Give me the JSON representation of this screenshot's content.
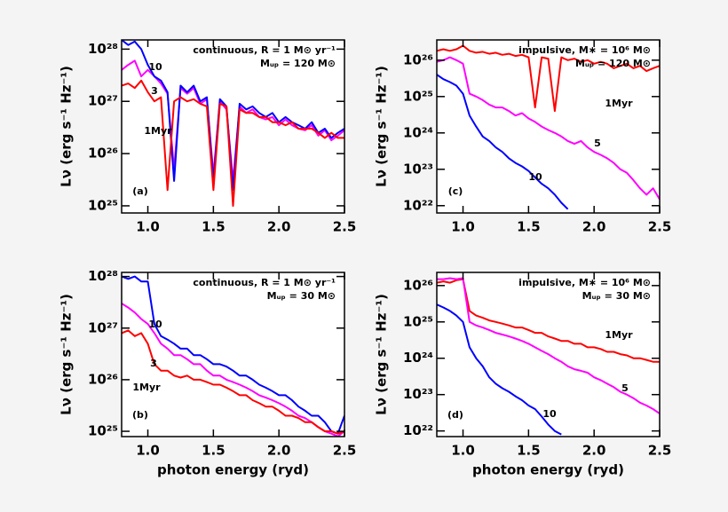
{
  "chart_data": [
    {
      "type": "line",
      "panel_label": "(a)",
      "text": [
        "continuous,  R = 1 M⊙ yr⁻¹",
        "Mᵤₚ = 120 M⊙"
      ],
      "ylabel": "Lν  (erg s⁻¹ Hz⁻¹)",
      "log_y": true,
      "xlim": [
        0.8,
        2.5
      ],
      "ylim": [
        7.3e+24,
        1.5e+28
      ],
      "xticks": [
        {
          "value": 1,
          "label": "1.0"
        },
        1.5,
        {
          "value": 2,
          "label": "2.0"
        },
        2.5
      ],
      "yticks": [
        {
          "value": 1e+25,
          "label": "10²⁵"
        },
        {
          "value": 1e+26,
          "label": "10²⁶"
        },
        {
          "value": 1e+27,
          "label": "10²⁷"
        },
        {
          "value": 1e+28,
          "label": "10²⁸"
        }
      ],
      "x": [
        0.8,
        0.85,
        0.9,
        0.95,
        1,
        1.05,
        1.1,
        1.15,
        1.2,
        1.25,
        1.3,
        1.35,
        1.4,
        1.45,
        1.5,
        1.55,
        1.6,
        1.65,
        1.7,
        1.75,
        1.8,
        1.85,
        1.9,
        1.95,
        2,
        2.05,
        2.1,
        2.15,
        2.2,
        2.25,
        2.3,
        2.35,
        2.4,
        2.45,
        2.5
      ],
      "series": [
        {
          "name": "3",
          "color": "#ff00ff",
          "values": [
            4e+27,
            5e+27,
            6e+27,
            3e+27,
            4e+27,
            3e+27,
            2.2e+27,
            1.4e+27,
            5e+25,
            1.8e+27,
            1.4e+27,
            1.8e+27,
            9e+26,
            1.1e+27,
            4e+25,
            1e+27,
            7e+26,
            3e+25,
            8e+26,
            6e+26,
            7e+26,
            5e+26,
            4.5e+26,
            5e+26,
            3.5e+26,
            4.5e+26,
            3.5e+26,
            3e+26,
            2.8e+26,
            3.5e+26,
            2.2e+26,
            2.8e+26,
            1.8e+26,
            2.2e+26,
            2.8e+26
          ]
        },
        {
          "name": "10",
          "color": "#0000ff",
          "values": [
            1.5e+28,
            1.2e+28,
            1.4e+28,
            1e+28,
            5e+27,
            3e+27,
            2.5e+27,
            1.5e+27,
            3e+25,
            2e+27,
            1.5e+27,
            2e+27,
            1e+27,
            1.2e+27,
            3e+25,
            1.1e+27,
            8e+26,
            2e+25,
            9e+26,
            7e+26,
            8e+26,
            6e+26,
            5e+26,
            6e+26,
            4e+26,
            5e+26,
            4e+26,
            3.5e+26,
            3e+26,
            4e+26,
            2.5e+26,
            3e+26,
            2e+26,
            2.5e+26,
            3e+26
          ]
        },
        {
          "name": "1Myr",
          "color": "#ff0000",
          "values": [
            2e+27,
            2.2e+27,
            1.8e+27,
            2.5e+27,
            1.5e+27,
            1e+27,
            1.2e+27,
            2e+25,
            1e+27,
            1.2e+27,
            1e+27,
            1.1e+27,
            9e+26,
            8e+26,
            2e+25,
            9e+26,
            8e+26,
            1e+25,
            7e+26,
            6e+26,
            6e+26,
            5e+26,
            5e+26,
            4e+26,
            4e+26,
            3.5e+26,
            4e+26,
            3e+26,
            3e+26,
            3e+26,
            2.5e+26,
            2e+26,
            2.5e+26,
            2e+26,
            2e+26
          ]
        }
      ]
    },
    {
      "type": "line",
      "panel_label": "(b)",
      "text": [
        "continuous,  R = 1 M⊙ yr⁻¹",
        "Mᵤₚ = 30 M⊙"
      ],
      "ylabel": "Lν  (erg s⁻¹ Hz⁻¹)",
      "xlabel": "photon energy  (ryd)",
      "log_y": true,
      "xlim": [
        0.8,
        2.5
      ],
      "ylim": [
        7.9e+24,
        1.2e+28
      ],
      "xticks": [
        {
          "value": 1,
          "label": "1.0"
        },
        1.5,
        {
          "value": 2,
          "label": "2.0"
        },
        2.5
      ],
      "yticks": [
        {
          "value": 1e+25,
          "label": "10²⁵"
        },
        {
          "value": 1e+26,
          "label": "10²⁶"
        },
        {
          "value": 1e+27,
          "label": "10²⁷"
        },
        {
          "value": 1e+28,
          "label": "10²⁸"
        }
      ],
      "x": [
        0.8,
        0.85,
        0.9,
        0.95,
        1,
        1.05,
        1.1,
        1.15,
        1.2,
        1.25,
        1.3,
        1.35,
        1.4,
        1.45,
        1.5,
        1.55,
        1.6,
        1.65,
        1.7,
        1.75,
        1.8,
        1.85,
        1.9,
        1.95,
        2,
        2.05,
        2.1,
        2.15,
        2.2,
        2.25,
        2.3,
        2.35,
        2.4,
        2.45,
        2.5
      ],
      "series": [
        {
          "name": "3",
          "color": "#ff00ff",
          "values": [
            3e+27,
            2.5e+27,
            2e+27,
            1.5e+27,
            1.2e+27,
            8e+26,
            5e+26,
            4e+26,
            3e+26,
            3e+26,
            2.5e+26,
            2e+26,
            2e+26,
            1.5e+26,
            1.2e+26,
            1.2e+26,
            1e+26,
            9e+25,
            8e+25,
            7e+25,
            6e+25,
            5e+25,
            4.5e+25,
            4e+25,
            3.5e+25,
            3e+25,
            2.5e+25,
            2e+25,
            1.8e+25,
            1.5e+25,
            1.2e+25,
            1e+25,
            9e+24,
            8e+24,
            1e+25
          ]
        },
        {
          "name": "10",
          "color": "#0000ff",
          "values": [
            1e+28,
            9e+27,
            1e+28,
            8e+27,
            8e+27,
            1.2e+27,
            7e+26,
            6e+26,
            5e+26,
            4e+26,
            4e+26,
            3e+26,
            3e+26,
            2.5e+26,
            2e+26,
            2e+26,
            1.8e+26,
            1.5e+26,
            1.2e+26,
            1.2e+26,
            1e+26,
            8e+25,
            7e+25,
            6e+25,
            5e+25,
            5e+25,
            4e+25,
            3e+25,
            2.5e+25,
            2e+25,
            2e+25,
            1.5e+25,
            1e+25,
            9e+24,
            2e+25
          ]
        },
        {
          "name": "1Myr",
          "color": "#ff0000",
          "values": [
            8e+26,
            9e+26,
            7e+26,
            8e+26,
            5e+26,
            2e+26,
            1.5e+26,
            1.5e+26,
            1.2e+26,
            1.1e+26,
            1.2e+26,
            1e+26,
            1e+26,
            9e+25,
            8e+25,
            8e+25,
            7e+25,
            6e+25,
            5e+25,
            5e+25,
            4e+25,
            3.5e+25,
            3e+25,
            3e+25,
            2.5e+25,
            2e+25,
            2e+25,
            1.8e+25,
            1.5e+25,
            1.5e+25,
            1.2e+25,
            1e+25,
            1e+25,
            9e+24,
            1e+25
          ]
        }
      ]
    },
    {
      "type": "line",
      "panel_label": "(c)",
      "text": [
        "impulsive,  M∗ = 10⁶ M⊙",
        "Mᵤₚ = 120 M⊙"
      ],
      "ylabel": "Lν  (erg s⁻¹ Hz⁻¹)",
      "log_y": true,
      "xlim": [
        0.8,
        2.5
      ],
      "ylim": [
        6.3e+21,
        3.6e+26
      ],
      "xticks": [
        {
          "value": 1,
          "label": "1.0"
        },
        1.5,
        {
          "value": 2,
          "label": "2.0"
        },
        2.5
      ],
      "yticks": [
        {
          "value": 1e+22,
          "label": "10²²"
        },
        {
          "value": 1e+23,
          "label": "10²³"
        },
        {
          "value": 1e+24,
          "label": "10²⁴"
        },
        {
          "value": 1e+25,
          "label": "10²⁵"
        },
        {
          "value": 1e+26,
          "label": "10²⁶"
        }
      ],
      "x": [
        0.8,
        0.85,
        0.9,
        0.95,
        1,
        1.05,
        1.1,
        1.15,
        1.2,
        1.25,
        1.3,
        1.35,
        1.4,
        1.45,
        1.5,
        1.55,
        1.6,
        1.65,
        1.7,
        1.75,
        1.8,
        1.85,
        1.9,
        1.95,
        2,
        2.05,
        2.1,
        2.15,
        2.2,
        2.25,
        2.3,
        2.35,
        2.4,
        2.45,
        2.5
      ],
      "series": [
        {
          "name": "1Myr",
          "color": "#ff0000",
          "values": [
            1.8e+26,
            2e+26,
            1.8e+26,
            2e+26,
            2.5e+26,
            1.8e+26,
            1.6e+26,
            1.7e+26,
            1.5e+26,
            1.6e+26,
            1.4e+26,
            1.5e+26,
            1.3e+26,
            1.4e+26,
            1.2e+26,
            5e+24,
            1.2e+26,
            1.1e+26,
            4e+24,
            1.2e+26,
            1e+26,
            1.1e+26,
            9e+25,
            1e+26,
            8e+25,
            9e+25,
            8e+25,
            6e+25,
            7e+25,
            8e+25,
            6e+25,
            7e+25,
            5e+25,
            6e+25,
            7e+25
          ]
        },
        {
          "name": "5",
          "color": "#ff00ff",
          "values": [
            9e+25,
            1e+26,
            1.2e+26,
            1e+26,
            8e+25,
            1.2e+25,
            1e+25,
            8e+24,
            6e+24,
            5e+24,
            5e+24,
            4e+24,
            3e+24,
            3.5e+24,
            2.5e+24,
            2e+24,
            1.5e+24,
            1.2e+24,
            1e+24,
            8e+23,
            6e+23,
            5e+23,
            6e+23,
            4e+23,
            3e+23,
            2.5e+23,
            2e+23,
            1.5e+23,
            1e+23,
            8e+22,
            5e+22,
            3e+22,
            2e+22,
            3e+22,
            1.5e+22
          ]
        },
        {
          "name": "10",
          "color": "#0000ff",
          "values": [
            4e+25,
            3e+25,
            2.5e+25,
            2e+25,
            1.2e+25,
            3e+24,
            1.5e+24,
            8e+23,
            6e+23,
            4e+23,
            3e+23,
            2e+23,
            1.5e+23,
            1.2e+23,
            9e+22,
            6e+22,
            4e+22,
            3e+22,
            2e+22,
            1.2e+22,
            8e+21,
            null,
            null,
            null,
            null,
            null,
            null,
            null,
            null,
            null,
            null,
            null,
            null,
            null,
            null
          ]
        }
      ]
    },
    {
      "type": "line",
      "panel_label": "(d)",
      "text": [
        "impulsive,  M∗ = 10⁶ M⊙",
        "Mᵤₚ = 30 M⊙"
      ],
      "ylabel": "Lν  (erg s⁻¹ Hz⁻¹)",
      "xlabel": "photon energy  (ryd)",
      "log_y": true,
      "xlim": [
        0.8,
        2.5
      ],
      "ylim": [
        7e+21,
        2.3e+26
      ],
      "xticks": [
        {
          "value": 1,
          "label": "1.0"
        },
        1.5,
        {
          "value": 2,
          "label": "2.0"
        },
        2.5
      ],
      "yticks": [
        {
          "value": 1e+22,
          "label": "10²²"
        },
        {
          "value": 1e+23,
          "label": "10²³"
        },
        {
          "value": 1e+24,
          "label": "10²⁴"
        },
        {
          "value": 1e+25,
          "label": "10²⁵"
        },
        {
          "value": 1e+26,
          "label": "10²⁶"
        }
      ],
      "x": [
        0.8,
        0.85,
        0.9,
        0.95,
        1,
        1.05,
        1.1,
        1.15,
        1.2,
        1.25,
        1.3,
        1.35,
        1.4,
        1.45,
        1.5,
        1.55,
        1.6,
        1.65,
        1.7,
        1.75,
        1.8,
        1.85,
        1.9,
        1.95,
        2,
        2.05,
        2.1,
        2.15,
        2.2,
        2.25,
        2.3,
        2.35,
        2.4,
        2.45,
        2.5
      ],
      "series": [
        {
          "name": "1Myr",
          "color": "#ff0000",
          "values": [
            1.2e+26,
            1.3e+26,
            1.2e+26,
            1.4e+26,
            1.5e+26,
            2e+25,
            1.5e+25,
            1.3e+25,
            1.1e+25,
            1e+25,
            9e+24,
            8e+24,
            7e+24,
            7e+24,
            6e+24,
            5e+24,
            5e+24,
            4e+24,
            3.5e+24,
            3e+24,
            3e+24,
            2.5e+24,
            2.5e+24,
            2e+24,
            2e+24,
            1.8e+24,
            1.5e+24,
            1.5e+24,
            1.3e+24,
            1.2e+24,
            1e+24,
            1e+24,
            9e+23,
            8e+23,
            8e+23
          ]
        },
        {
          "name": "5",
          "color": "#ff00ff",
          "values": [
            1.5e+26,
            1.5e+26,
            1.6e+26,
            1.5e+26,
            1.6e+26,
            1e+25,
            8e+24,
            7e+24,
            6e+24,
            5e+24,
            4.5e+24,
            4e+24,
            3.5e+24,
            3e+24,
            2.5e+24,
            2e+24,
            1.6e+24,
            1.3e+24,
            1e+24,
            8e+23,
            6e+23,
            5e+23,
            4.5e+23,
            4e+23,
            3e+23,
            2.5e+23,
            2e+23,
            1.6e+23,
            1.2e+23,
            1e+23,
            8e+22,
            6e+22,
            5e+22,
            4e+22,
            3e+22
          ]
        },
        {
          "name": "10",
          "color": "#0000ff",
          "values": [
            3e+25,
            2.5e+25,
            2e+25,
            1.5e+25,
            1e+25,
            2e+24,
            1e+24,
            6e+23,
            3e+23,
            2e+23,
            1.5e+23,
            1.2e+23,
            9e+22,
            7e+22,
            5e+22,
            4e+22,
            2.5e+22,
            1.5e+22,
            1e+22,
            8e+21,
            null,
            null,
            null,
            null,
            null,
            null,
            null,
            null,
            null,
            null,
            null,
            null,
            null,
            null,
            null
          ]
        }
      ]
    }
  ]
}
